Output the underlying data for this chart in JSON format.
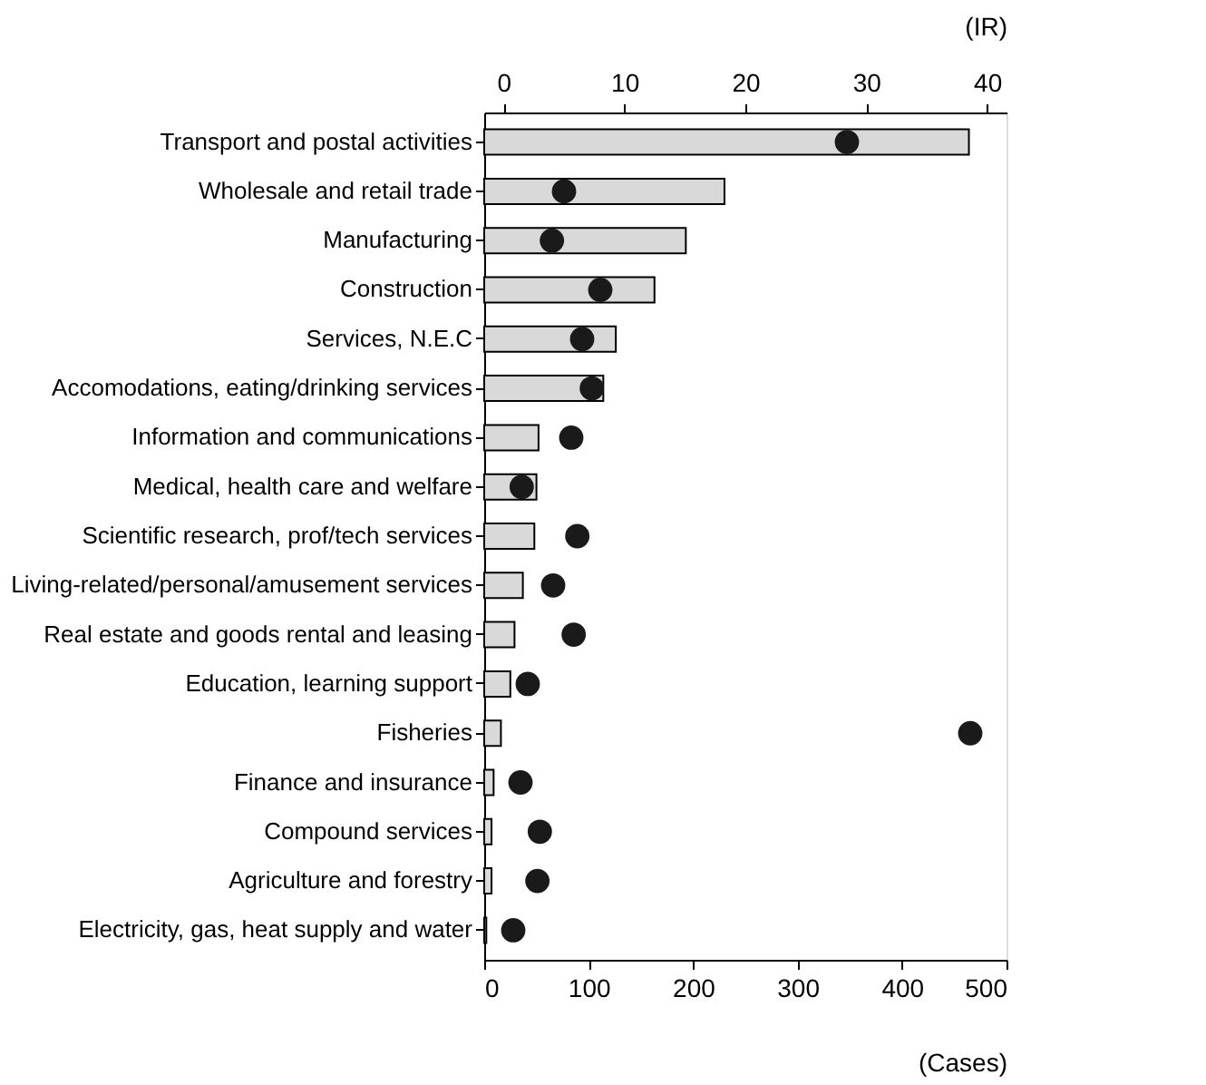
{
  "chart_data": {
    "type": "bar",
    "orientation": "horizontal",
    "categories": [
      "Transport and postal activities",
      "Wholesale and retail trade",
      "Manufacturing",
      "Construction",
      "Services, N.E.C",
      "Accomodations, eating/drinking services",
      "Information and communications",
      "Medical, health care and welfare",
      "Scientific research, prof/tech services",
      "Living-related/personal/amusement services",
      "Real estate and goods rental and leasing",
      "Education, learning support",
      "Fisheries",
      "Finance and insurance",
      "Compound services",
      "Agriculture and forestry",
      "Electricity, gas, heat supply and water"
    ],
    "series": [
      {
        "color": "#d9d9d9",
        "values": [
          464,
          230,
          193,
          163,
          126,
          114,
          52,
          50,
          48,
          37,
          29,
          25,
          16,
          9,
          7,
          7,
          2
        ]
      },
      {
        "type": "scatter",
        "axis": "x2",
        "color": "#1a1a1a",
        "marker": "circle",
        "values": [
          28.4,
          5.0,
          4.0,
          8.0,
          6.5,
          7.3,
          5.6,
          1.5,
          6.1,
          4.1,
          5.8,
          2.0,
          38.6,
          1.4,
          3.0,
          2.8,
          0.8
        ]
      }
    ],
    "xlim": [
      0,
      500
    ],
    "xticks": [
      0,
      100,
      200,
      300,
      400,
      500
    ],
    "xlabel": "(Cases)",
    "x2lim": [
      -1.6,
      41.6
    ],
    "x2ticks": [
      0,
      10,
      20,
      30,
      40
    ],
    "x2label": "(IR)",
    "grid": false
  }
}
